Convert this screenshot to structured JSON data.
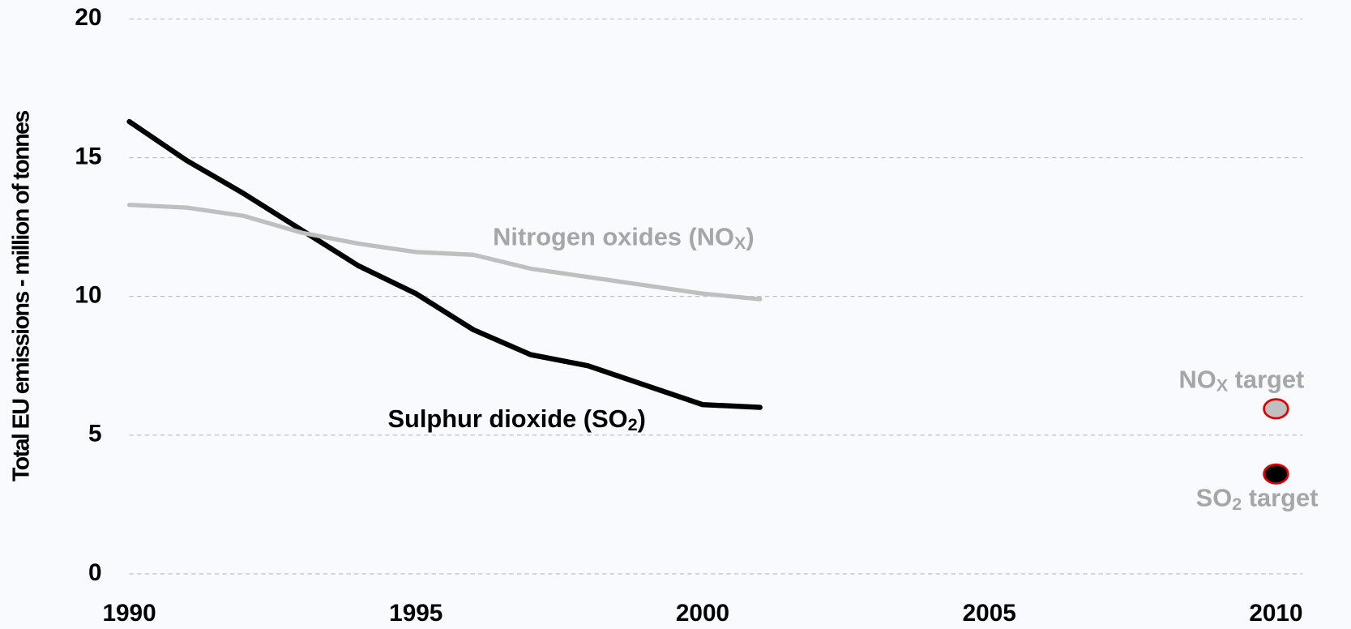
{
  "chart_data": {
    "type": "line",
    "y_label": "Total EU emissions - million of tonnes",
    "x": [
      1990,
      1991,
      1992,
      1993,
      1994,
      1995,
      1996,
      1997,
      1998,
      1999,
      2000,
      2001
    ],
    "series": [
      {
        "name": [
          "Sulphur dioxide (SO",
          "2",
          ")"
        ],
        "color": "#000000",
        "values": [
          16.3,
          14.9,
          13.7,
          12.4,
          11.1,
          10.1,
          8.8,
          7.9,
          7.5,
          6.8,
          6.1,
          6.0
        ]
      },
      {
        "name": [
          "Nitrogen oxides (NO",
          "X",
          ")"
        ],
        "color": "#bfbfbf",
        "values": [
          13.3,
          13.2,
          12.9,
          12.3,
          11.9,
          11.6,
          11.5,
          11.0,
          10.7,
          10.4,
          10.1,
          9.9
        ]
      }
    ],
    "targets": [
      {
        "label": [
          "NO",
          "X",
          " target"
        ],
        "x": 2010,
        "value": 5.95,
        "color": "#c0c0c0",
        "edge": "#e00000"
      },
      {
        "label": [
          "SO",
          "2",
          " target"
        ],
        "x": 2010,
        "value": 3.6,
        "color": "#000000",
        "edge": "#e00000"
      }
    ],
    "xlim": [
      1990,
      2010
    ],
    "xticks": [
      1990,
      1995,
      2000,
      2005,
      2010
    ],
    "ylim": [
      0,
      20
    ],
    "yticks": [
      0,
      5,
      10,
      15,
      20
    ],
    "grid": true
  }
}
